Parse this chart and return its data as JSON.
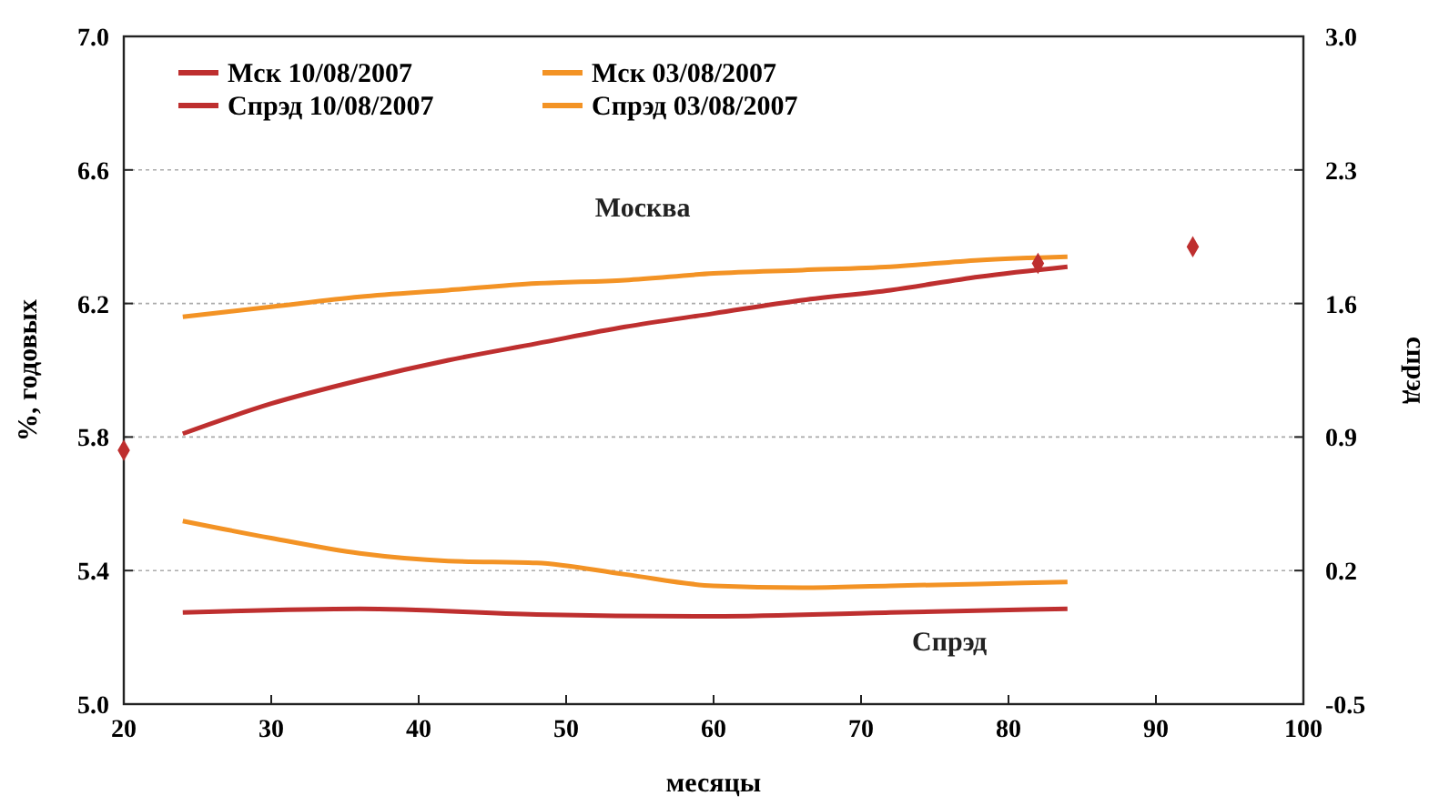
{
  "chart_data": {
    "type": "line",
    "xlabel": "месяцы",
    "ylabel": "%, годовых",
    "y2label": "спрэд",
    "xlim": [
      20,
      100
    ],
    "xticks": [
      20,
      30,
      40,
      50,
      60,
      70,
      80,
      90,
      100
    ],
    "ylim": [
      5.0,
      7.0
    ],
    "yticks": [
      {
        "value": 5.0,
        "label": "5.0"
      },
      5.4,
      5.8,
      6.2,
      6.6,
      {
        "value": 7.0,
        "label": "7.0"
      }
    ],
    "y2lim": [
      -0.5,
      3.0
    ],
    "y2ticks": [
      -0.5,
      0.2,
      0.9,
      1.6,
      2.3,
      {
        "value": 3.0,
        "label": "3.0"
      }
    ],
    "grid": "y",
    "legend": "top left",
    "line_style": "solid",
    "annotations": [
      "Москва",
      "Спрэд"
    ],
    "series": [
      {
        "name": "Мск 10/08/2007",
        "color": "#be2f2f",
        "x": [
          24,
          30,
          36,
          42,
          48,
          54,
          60,
          66,
          72,
          78,
          84
        ],
        "values": [
          5.81,
          5.9,
          5.97,
          6.03,
          6.08,
          6.13,
          6.17,
          6.21,
          6.24,
          6.28,
          6.31
        ]
      },
      {
        "name": "Спрэд 10/08/2007",
        "color": "#be2f2f",
        "axis": "y2",
        "x": [
          24,
          36,
          48,
          60,
          72,
          84
        ],
        "values": [
          -0.02,
          0.0,
          -0.03,
          -0.04,
          -0.02,
          0.0
        ]
      },
      {
        "name": "Мск 03/08/2007",
        "color": "#f39325",
        "x": [
          24,
          30,
          36,
          42,
          48,
          54,
          60,
          66,
          72,
          78,
          84
        ],
        "values": [
          6.16,
          6.19,
          6.22,
          6.24,
          6.26,
          6.27,
          6.29,
          6.3,
          6.31,
          6.33,
          6.34
        ]
      },
      {
        "name": "Спрэд 03/08/2007",
        "color": "#f39325",
        "axis": "y2",
        "x": [
          24,
          30,
          36,
          42,
          48,
          54,
          60,
          66,
          72,
          78,
          84
        ],
        "values": [
          0.46,
          0.37,
          0.29,
          0.25,
          0.24,
          0.18,
          0.12,
          0.11,
          0.12,
          0.13,
          0.14
        ]
      },
      {
        "type": "scatter",
        "color": "#be2f2f",
        "marker": "diamond",
        "x": [
          20,
          82,
          92.5
        ],
        "values": [
          5.76,
          6.32,
          6.37
        ]
      }
    ]
  }
}
